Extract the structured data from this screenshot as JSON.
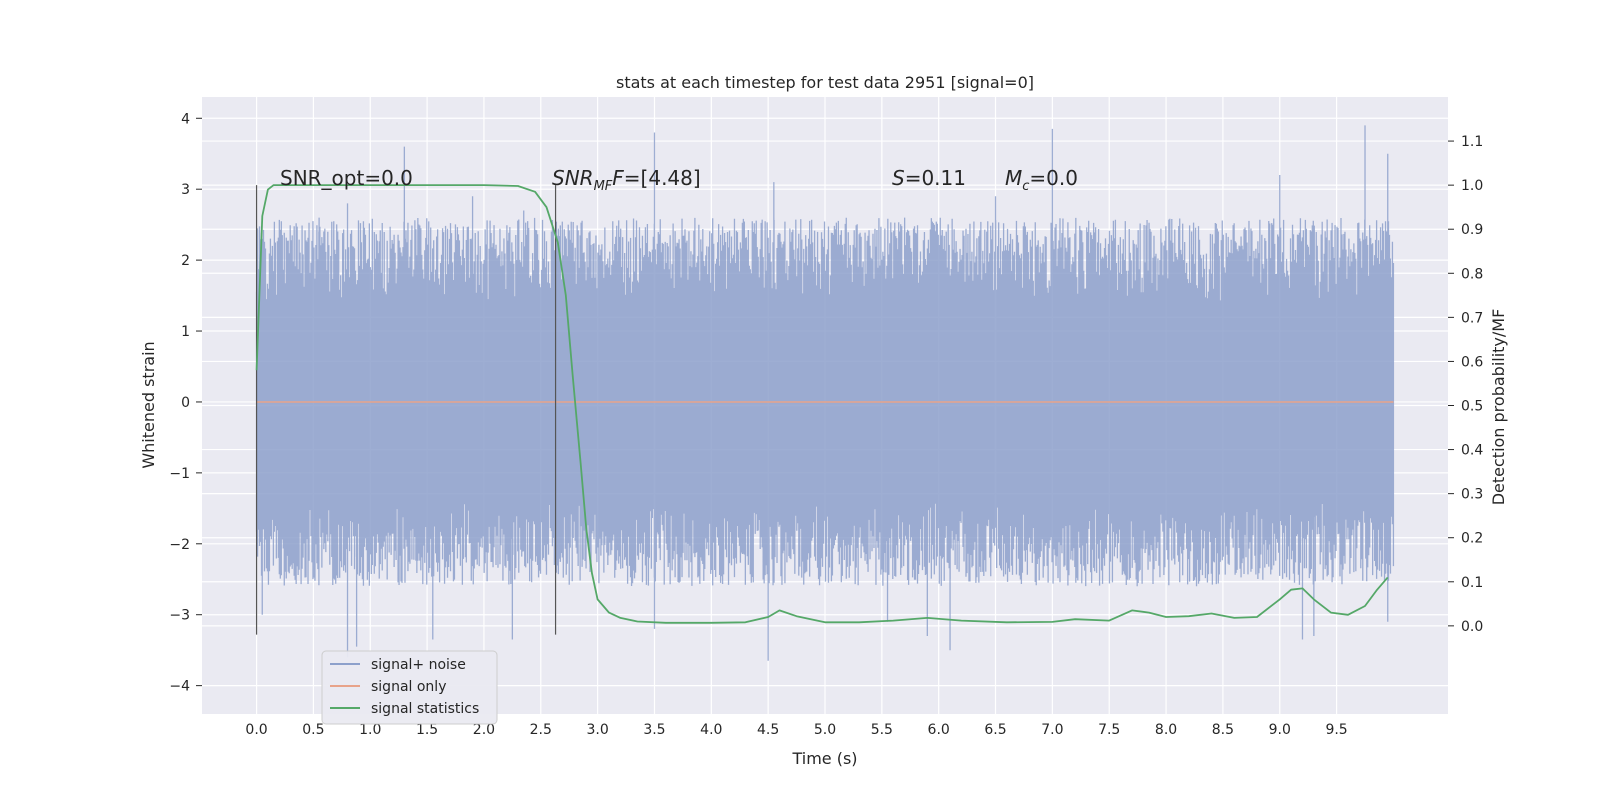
{
  "chart_data": {
    "type": "line",
    "title": "stats at each timestep for test data 2951 [signal=0]",
    "xlabel": "Time (s)",
    "ylabel": "Whitened strain",
    "ylabel_right": "Detection probability/MF",
    "xlim": [
      -0.48,
      10.48
    ],
    "ylim": [
      -4.4,
      4.3
    ],
    "ylim_right": [
      -0.2,
      1.2
    ],
    "x_ticks": [
      "0.0",
      "0.5",
      "1.0",
      "1.5",
      "2.0",
      "2.5",
      "3.0",
      "3.5",
      "4.0",
      "4.5",
      "5.0",
      "5.5",
      "6.0",
      "6.5",
      "7.0",
      "7.5",
      "8.0",
      "8.5",
      "9.0",
      "9.5"
    ],
    "y_ticks": [
      "4",
      "3",
      "2",
      "1",
      "0",
      "−1",
      "−2",
      "−3",
      "−4"
    ],
    "y_ticks_right": [
      "1.1",
      "1.0",
      "0.9",
      "0.8",
      "0.7",
      "0.6",
      "0.5",
      "0.4",
      "0.3",
      "0.2",
      "0.1",
      "0.0"
    ],
    "grid": true,
    "legend_position": "lower-left",
    "noise_envelope": {
      "x": [
        0.0,
        10.0
      ],
      "typical_max": 2.6,
      "typical_min": -2.6,
      "peaks_max": [
        [
          0.05,
          2.3
        ],
        [
          0.55,
          2.6
        ],
        [
          0.8,
          2.8
        ],
        [
          1.3,
          3.6
        ],
        [
          1.9,
          2.9
        ],
        [
          2.35,
          2.7
        ],
        [
          3.5,
          3.8
        ],
        [
          4.55,
          3.1
        ],
        [
          6.5,
          2.9
        ],
        [
          7.0,
          3.85
        ],
        [
          9.0,
          3.2
        ],
        [
          9.75,
          3.9
        ],
        [
          9.95,
          3.5
        ]
      ],
      "peaks_min": [
        [
          0.05,
          -3.0
        ],
        [
          0.8,
          -3.6
        ],
        [
          0.88,
          -3.45
        ],
        [
          1.55,
          -3.35
        ],
        [
          2.25,
          -3.35
        ],
        [
          3.5,
          -3.2
        ],
        [
          4.5,
          -3.65
        ],
        [
          5.55,
          -3.1
        ],
        [
          5.9,
          -3.3
        ],
        [
          6.1,
          -3.5
        ],
        [
          9.2,
          -3.35
        ],
        [
          9.3,
          -3.3
        ],
        [
          9.95,
          -3.1
        ]
      ]
    },
    "series": [
      {
        "name": "signal+ noise",
        "color": "#8da0cb"
      },
      {
        "name": "signal only",
        "color": "#e8a38a",
        "x": [
          0.0,
          10.0
        ],
        "y": [
          0.0,
          0.0
        ]
      },
      {
        "name": "signal statistics",
        "color": "#55a868",
        "axis": "right",
        "x": [
          0.0,
          0.05,
          0.1,
          0.15,
          0.2,
          0.3,
          0.5,
          1.0,
          1.5,
          2.0,
          2.3,
          2.45,
          2.55,
          2.65,
          2.72,
          2.78,
          2.85,
          2.9,
          2.95,
          3.0,
          3.1,
          3.2,
          3.35,
          3.6,
          4.0,
          4.3,
          4.5,
          4.6,
          4.75,
          5.0,
          5.3,
          5.6,
          5.9,
          6.2,
          6.6,
          7.0,
          7.2,
          7.5,
          7.7,
          7.85,
          8.0,
          8.2,
          8.4,
          8.6,
          8.8,
          9.0,
          9.1,
          9.2,
          9.3,
          9.45,
          9.6,
          9.75,
          9.85,
          9.95
        ],
        "y": [
          0.58,
          0.93,
          0.99,
          1.0,
          1.0,
          1.0,
          1.0,
          1.0,
          1.0,
          1.0,
          0.998,
          0.985,
          0.95,
          0.87,
          0.75,
          0.57,
          0.37,
          0.22,
          0.12,
          0.06,
          0.03,
          0.018,
          0.01,
          0.007,
          0.007,
          0.008,
          0.02,
          0.035,
          0.022,
          0.008,
          0.008,
          0.012,
          0.018,
          0.012,
          0.008,
          0.009,
          0.015,
          0.012,
          0.035,
          0.03,
          0.02,
          0.022,
          0.028,
          0.018,
          0.02,
          0.06,
          0.082,
          0.085,
          0.06,
          0.03,
          0.025,
          0.045,
          0.08,
          0.11
        ]
      }
    ],
    "vlines": [
      {
        "x": 0.0,
        "y_range": [
          -0.02,
          1.0
        ]
      },
      {
        "x": 2.63,
        "y_range": [
          -0.02,
          1.0
        ]
      }
    ],
    "annotations": [
      {
        "id": "snr_opt",
        "text": "SNR_opt=0.0",
        "x": 0.2
      },
      {
        "id": "snr_mf",
        "prefix": "SNR",
        "sub": "MF",
        "suffix": "F=[4.48]",
        "x": 2.6
      },
      {
        "id": "s_val",
        "prefix": "S",
        "suffix": "=0.11",
        "x": 5.6
      },
      {
        "id": "mc_val",
        "prefix": "M",
        "sub": "c",
        "suffix": "=0.0",
        "x": 6.6
      }
    ]
  }
}
